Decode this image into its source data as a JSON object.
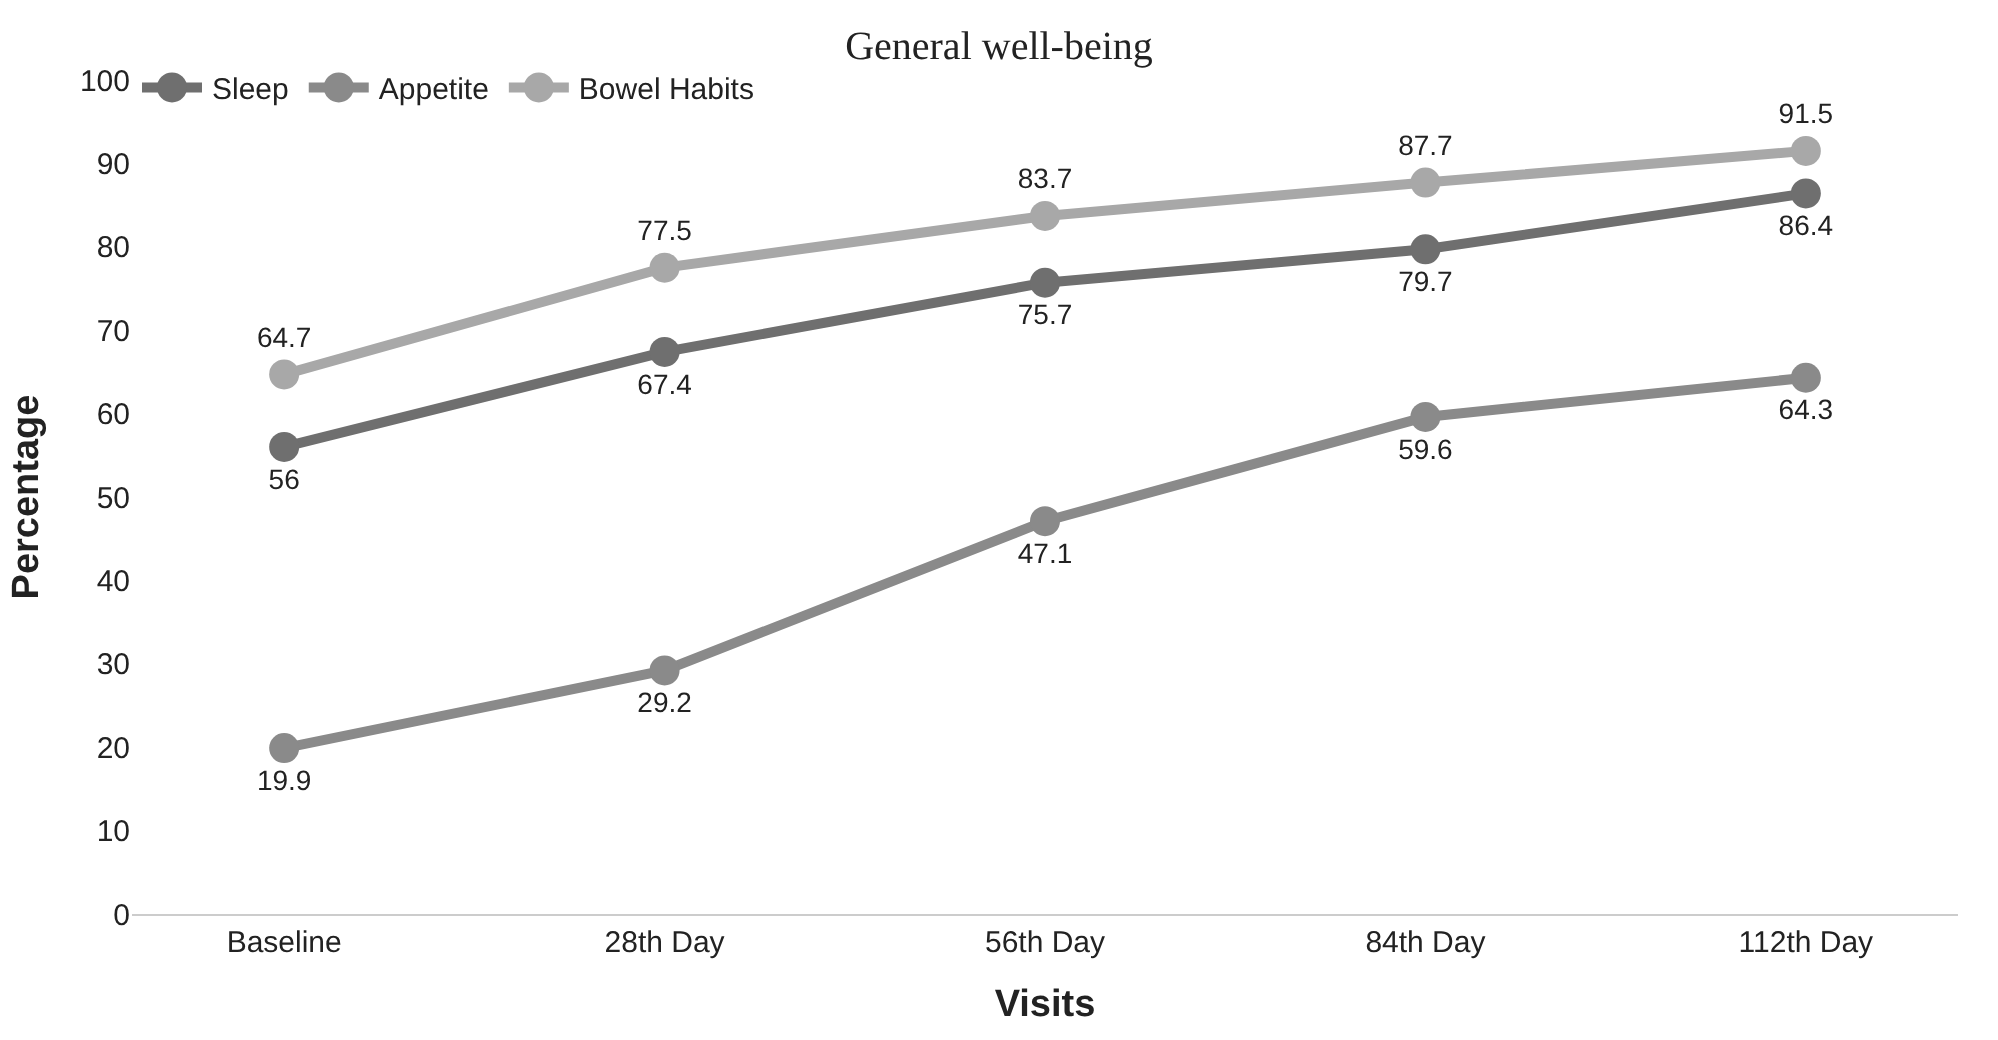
{
  "chart_data": {
    "type": "line",
    "title": "General well-being",
    "xlabel": "Visits",
    "ylabel": "Percentage",
    "categories": [
      "Baseline",
      "28th Day",
      "56th Day",
      "84th Day",
      "112th Day"
    ],
    "series": [
      {
        "name": "Sleep",
        "color": "#6f6f6f",
        "values": [
          56,
          67.4,
          75.7,
          79.7,
          86.4
        ]
      },
      {
        "name": "Appetite",
        "color": "#8a8a8a",
        "values": [
          19.9,
          29.2,
          47.1,
          59.6,
          64.3
        ]
      },
      {
        "name": "Bowel Habits",
        "color": "#a8a8a8",
        "values": [
          64.7,
          77.5,
          83.7,
          87.7,
          91.5
        ]
      }
    ],
    "ylim": [
      0,
      100
    ],
    "yticks": [
      0,
      10,
      20,
      30,
      40,
      50,
      60,
      70,
      80,
      90,
      100
    ],
    "data_labels": true,
    "legend": "top left",
    "marker": "circle",
    "line_style": "solid"
  }
}
